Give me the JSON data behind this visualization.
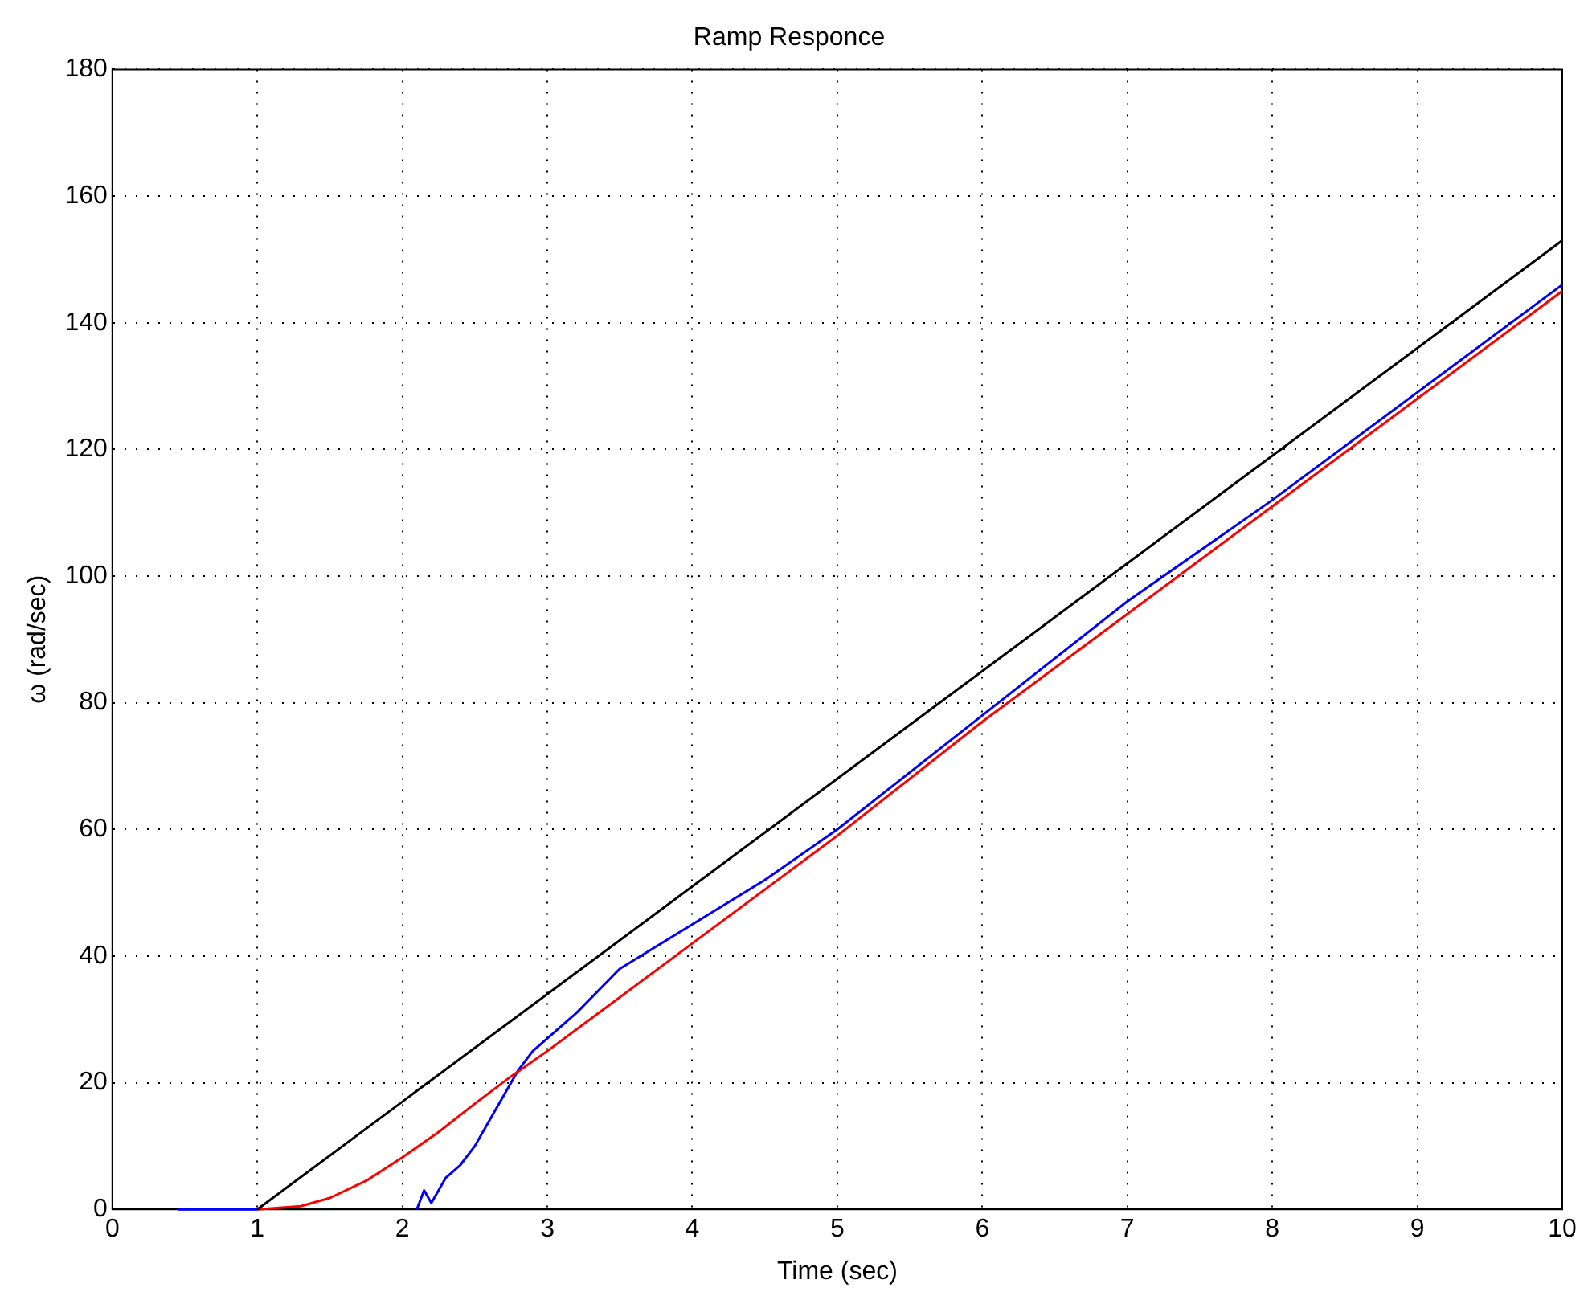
{
  "chart_data": {
    "type": "line",
    "title": "Ramp Responce",
    "xlabel": "Time (sec)",
    "ylabel": "ω (rad/sec)",
    "xlim": [
      0,
      10
    ],
    "xticks": [
      0,
      1,
      2,
      3,
      4,
      5,
      6,
      7,
      8,
      9,
      10
    ],
    "ylim": [
      0,
      180
    ],
    "yticks": [
      0,
      20,
      40,
      60,
      80,
      100,
      120,
      140,
      160,
      180
    ],
    "grid": true,
    "legend": false,
    "marker": "none",
    "series": [
      {
        "color": "#000000",
        "x": [
          1,
          10
        ],
        "values": [
          0,
          153
        ]
      },
      {
        "color": "#ff0000",
        "x": [
          1,
          1.3,
          1.5,
          1.75,
          2,
          2.25,
          2.5,
          2.75,
          3,
          4,
          5,
          6,
          7,
          8,
          9,
          10
        ],
        "values": [
          0,
          0.5,
          1.8,
          4.5,
          8.2,
          12.2,
          16.7,
          21,
          25,
          42,
          59,
          77,
          94,
          111,
          128,
          145
        ]
      },
      {
        "color": "#0000ff",
        "x": [
          0.45,
          1,
          1.5,
          2.1,
          2.15,
          2.2,
          2.3,
          2.4,
          2.5,
          2.6,
          2.7,
          2.8,
          2.9,
          3,
          3.2,
          3.5,
          4,
          4.5,
          5,
          6,
          7,
          8,
          9,
          10
        ],
        "values": [
          0,
          0,
          null,
          0,
          3,
          1,
          5,
          7,
          10,
          14,
          18,
          22,
          25,
          27,
          31,
          38,
          45,
          52,
          60,
          78,
          96,
          112,
          129,
          146
        ]
      }
    ]
  }
}
